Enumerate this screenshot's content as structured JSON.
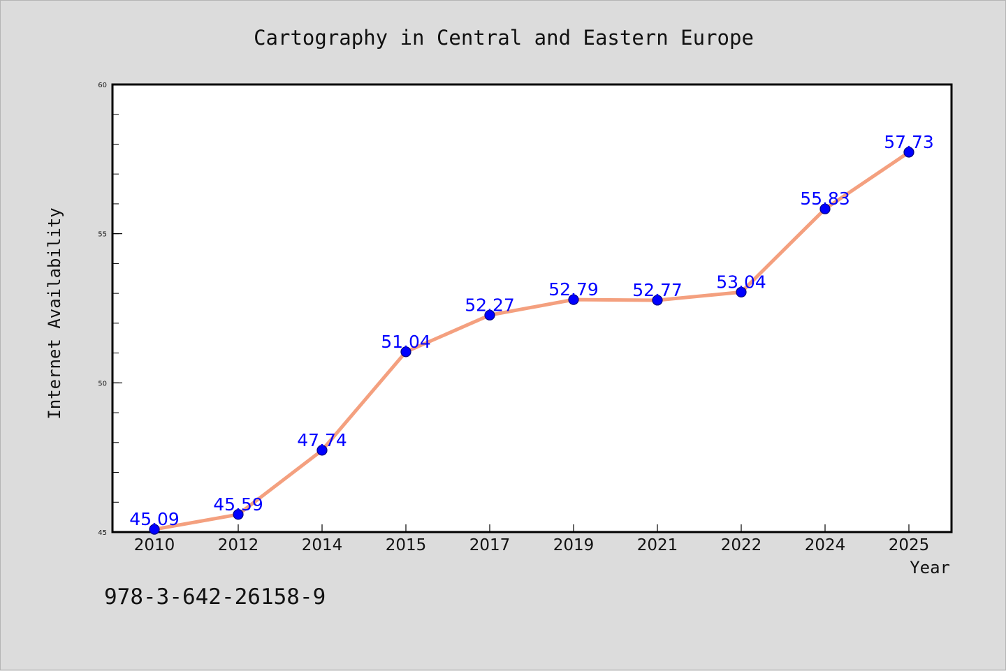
{
  "footnote": "978-3-642-26158-9",
  "colors": {
    "background": "#dcdcdc",
    "plot_background": "#ffffff",
    "line": "#f4a07f",
    "marker_fill": "#0000ff",
    "marker_stroke": "#000080",
    "data_label": "#0000ff",
    "text": "#111111"
  },
  "chart_data": {
    "type": "line",
    "title": "Cartography in Central and Eastern Europe",
    "xlabel": "Year",
    "ylabel": "Internet Availability",
    "categories": [
      "2010",
      "2012",
      "2014",
      "2015",
      "2017",
      "2019",
      "2021",
      "2022",
      "2024",
      "2025"
    ],
    "values": [
      45.09,
      45.59,
      47.74,
      51.04,
      52.27,
      52.79,
      52.77,
      53.04,
      55.83,
      57.73
    ],
    "data_labels": [
      "45.09",
      "45.59",
      "47.74",
      "51.04",
      "52.27",
      "52.79",
      "52.77",
      "53.04",
      "55.83",
      "57.73"
    ],
    "ylim": [
      45,
      60
    ],
    "yticks": [
      "45",
      "50",
      "55",
      "60"
    ],
    "ytick_values": [
      45,
      50,
      55,
      60
    ],
    "y_minor_step": 1,
    "grid": false,
    "legend": "none",
    "markers": "circle"
  }
}
